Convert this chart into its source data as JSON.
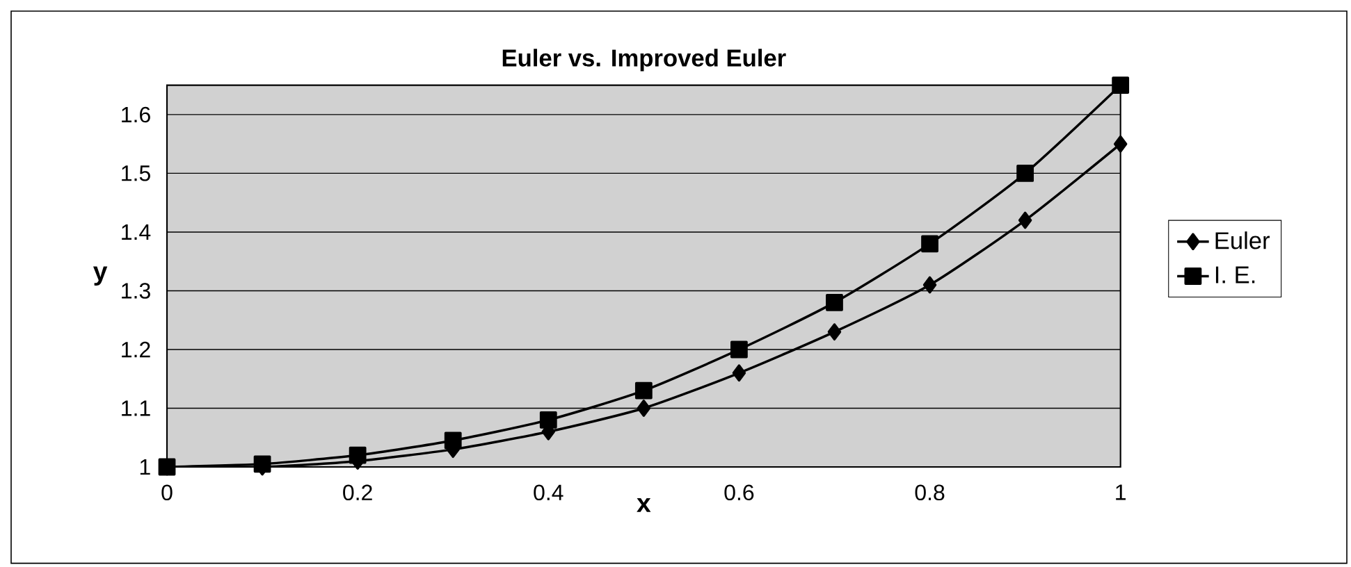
{
  "chart_data": {
    "type": "line",
    "title": "Euler vs. Improved Euler",
    "xlabel": "x",
    "ylabel": "y",
    "x": [
      0,
      0.1,
      0.2,
      0.3,
      0.4,
      0.5,
      0.6,
      0.7,
      0.8,
      0.9,
      1
    ],
    "series": [
      {
        "name": "Euler",
        "color": "#000000",
        "marker": "diamond",
        "values": [
          1,
          1,
          1.01,
          1.03,
          1.06,
          1.1,
          1.16,
          1.23,
          1.31,
          1.42,
          1.55
        ]
      },
      {
        "name": "I. E.",
        "color": "#000000",
        "marker": "square",
        "values": [
          1,
          1.005,
          1.02,
          1.045,
          1.08,
          1.13,
          1.2,
          1.28,
          1.38,
          1.5,
          1.65
        ]
      }
    ],
    "xlim": [
      0,
      1
    ],
    "ylim": [
      1,
      1.65
    ],
    "xticks": [
      0,
      0.2,
      0.4,
      0.6,
      0.8,
      1
    ],
    "yticks": [
      1,
      1.1,
      1.2,
      1.3,
      1.4,
      1.5,
      1.6
    ],
    "grid": "y",
    "legend": "right",
    "line_style": "solid"
  }
}
